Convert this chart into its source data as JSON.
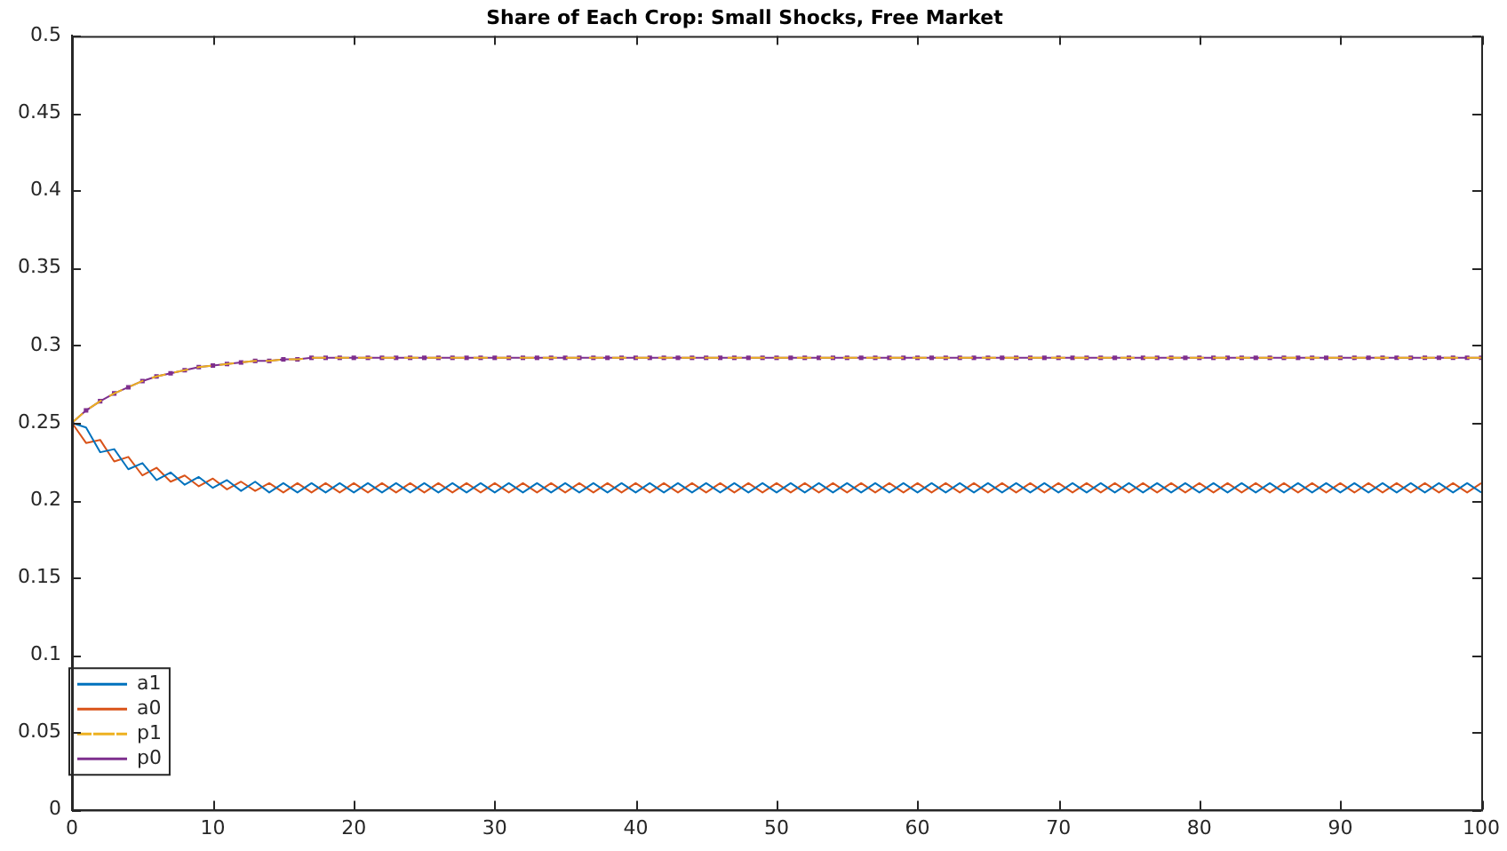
{
  "chart_data": {
    "type": "line",
    "title": "Share of Each Crop: Small Shocks, Free Market",
    "x": [
      0,
      1,
      2,
      3,
      4,
      5,
      6,
      7,
      8,
      9,
      10,
      11,
      12,
      13,
      14,
      15,
      16,
      17,
      18,
      19,
      20,
      21,
      22,
      23,
      24,
      25,
      26,
      27,
      28,
      29,
      30,
      31,
      32,
      33,
      34,
      35,
      36,
      37,
      38,
      39,
      40,
      41,
      42,
      43,
      44,
      45,
      46,
      47,
      48,
      49,
      50,
      51,
      52,
      53,
      54,
      55,
      56,
      57,
      58,
      59,
      60,
      61,
      62,
      63,
      64,
      65,
      66,
      67,
      68,
      69,
      70,
      71,
      72,
      73,
      74,
      75,
      76,
      77,
      78,
      79,
      80,
      81,
      82,
      83,
      84,
      85,
      86,
      87,
      88,
      89,
      90,
      91,
      92,
      93,
      94,
      95,
      96,
      97,
      98,
      99,
      100
    ],
    "series": [
      {
        "name": "a1",
        "color": "#0072bd",
        "values": [
          0.25,
          0.247,
          0.231,
          0.233,
          0.22,
          0.224,
          0.213,
          0.218,
          0.21,
          0.215,
          0.208,
          0.213,
          0.206,
          0.212,
          0.205,
          0.211,
          0.205,
          0.211,
          0.205,
          0.211,
          0.205,
          0.211,
          0.205,
          0.211,
          0.205,
          0.211,
          0.205,
          0.211,
          0.205,
          0.211,
          0.205,
          0.211,
          0.205,
          0.211,
          0.205,
          0.211,
          0.205,
          0.211,
          0.205,
          0.211,
          0.205,
          0.211,
          0.205,
          0.211,
          0.205,
          0.211,
          0.205,
          0.211,
          0.205,
          0.211,
          0.205,
          0.211,
          0.205,
          0.211,
          0.205,
          0.211,
          0.205,
          0.211,
          0.205,
          0.211,
          0.205,
          0.211,
          0.205,
          0.211,
          0.205,
          0.211,
          0.205,
          0.211,
          0.205,
          0.211,
          0.205,
          0.211,
          0.205,
          0.211,
          0.205,
          0.211,
          0.205,
          0.211,
          0.205,
          0.211,
          0.205,
          0.211,
          0.205,
          0.211,
          0.205,
          0.211,
          0.205,
          0.211,
          0.205,
          0.211,
          0.205,
          0.211,
          0.205,
          0.211,
          0.205,
          0.211,
          0.205,
          0.211,
          0.205,
          0.211,
          0.205
        ]
      },
      {
        "name": "a0",
        "color": "#d95319",
        "values": [
          0.25,
          0.237,
          0.239,
          0.225,
          0.228,
          0.216,
          0.221,
          0.212,
          0.216,
          0.209,
          0.214,
          0.207,
          0.212,
          0.206,
          0.211,
          0.205,
          0.211,
          0.205,
          0.211,
          0.205,
          0.211,
          0.205,
          0.211,
          0.205,
          0.211,
          0.205,
          0.211,
          0.205,
          0.211,
          0.205,
          0.211,
          0.205,
          0.211,
          0.205,
          0.211,
          0.205,
          0.211,
          0.205,
          0.211,
          0.205,
          0.211,
          0.205,
          0.211,
          0.205,
          0.211,
          0.205,
          0.211,
          0.205,
          0.211,
          0.205,
          0.211,
          0.205,
          0.211,
          0.205,
          0.211,
          0.205,
          0.211,
          0.205,
          0.211,
          0.205,
          0.211,
          0.205,
          0.211,
          0.205,
          0.211,
          0.205,
          0.211,
          0.205,
          0.211,
          0.205,
          0.211,
          0.205,
          0.211,
          0.205,
          0.211,
          0.205,
          0.211,
          0.205,
          0.211,
          0.205,
          0.211,
          0.205,
          0.211,
          0.205,
          0.211,
          0.205,
          0.211,
          0.205,
          0.211,
          0.205,
          0.211,
          0.205,
          0.211,
          0.205,
          0.211,
          0.205,
          0.211,
          0.205,
          0.211,
          0.205,
          0.211
        ]
      },
      {
        "name": "p1",
        "color": "#edb120",
        "line_style": "dashed",
        "values": [
          0.25,
          0.258,
          0.264,
          0.269,
          0.273,
          0.277,
          0.28,
          0.282,
          0.284,
          0.286,
          0.287,
          0.288,
          0.289,
          0.29,
          0.29,
          0.291,
          0.291,
          0.292,
          0.292,
          0.292,
          0.292,
          0.292,
          0.292,
          0.292,
          0.292,
          0.292,
          0.292,
          0.292,
          0.292,
          0.292,
          0.292,
          0.292,
          0.292,
          0.292,
          0.292,
          0.292,
          0.292,
          0.292,
          0.292,
          0.292,
          0.292,
          0.292,
          0.292,
          0.292,
          0.292,
          0.292,
          0.292,
          0.292,
          0.292,
          0.292,
          0.292,
          0.292,
          0.292,
          0.292,
          0.292,
          0.292,
          0.292,
          0.292,
          0.292,
          0.292,
          0.292,
          0.292,
          0.292,
          0.292,
          0.292,
          0.292,
          0.292,
          0.292,
          0.292,
          0.292,
          0.292,
          0.292,
          0.292,
          0.292,
          0.292,
          0.292,
          0.292,
          0.292,
          0.292,
          0.292,
          0.292,
          0.292,
          0.292,
          0.292,
          0.292,
          0.292,
          0.292,
          0.292,
          0.292,
          0.292,
          0.292,
          0.292,
          0.292,
          0.292,
          0.292,
          0.292,
          0.292,
          0.292,
          0.292,
          0.292,
          0.292
        ]
      },
      {
        "name": "p0",
        "color": "#7e2f8e",
        "marker": "square",
        "values": [
          0.25,
          0.258,
          0.264,
          0.269,
          0.273,
          0.277,
          0.28,
          0.282,
          0.284,
          0.286,
          0.287,
          0.288,
          0.289,
          0.29,
          0.29,
          0.291,
          0.291,
          0.292,
          0.292,
          0.292,
          0.292,
          0.292,
          0.292,
          0.292,
          0.292,
          0.292,
          0.292,
          0.292,
          0.292,
          0.292,
          0.292,
          0.292,
          0.292,
          0.292,
          0.292,
          0.292,
          0.292,
          0.292,
          0.292,
          0.292,
          0.292,
          0.292,
          0.292,
          0.292,
          0.292,
          0.292,
          0.292,
          0.292,
          0.292,
          0.292,
          0.292,
          0.292,
          0.292,
          0.292,
          0.292,
          0.292,
          0.292,
          0.292,
          0.292,
          0.292,
          0.292,
          0.292,
          0.292,
          0.292,
          0.292,
          0.292,
          0.292,
          0.292,
          0.292,
          0.292,
          0.292,
          0.292,
          0.292,
          0.292,
          0.292,
          0.292,
          0.292,
          0.292,
          0.292,
          0.292,
          0.292,
          0.292,
          0.292,
          0.292,
          0.292,
          0.292,
          0.292,
          0.292,
          0.292,
          0.292,
          0.292,
          0.292,
          0.292,
          0.292,
          0.292,
          0.292,
          0.292,
          0.292,
          0.292,
          0.292,
          0.292
        ]
      }
    ],
    "xlim": [
      0,
      100
    ],
    "xticks": [
      0,
      10,
      20,
      30,
      40,
      50,
      60,
      70,
      80,
      90,
      100
    ],
    "ylim": [
      0,
      0.5
    ],
    "yticks": [
      0,
      0.05,
      0.1,
      0.15,
      0.2,
      0.25,
      0.3,
      0.35,
      0.4,
      0.45,
      0.5
    ],
    "grid": false,
    "legend": "bottom left"
  }
}
